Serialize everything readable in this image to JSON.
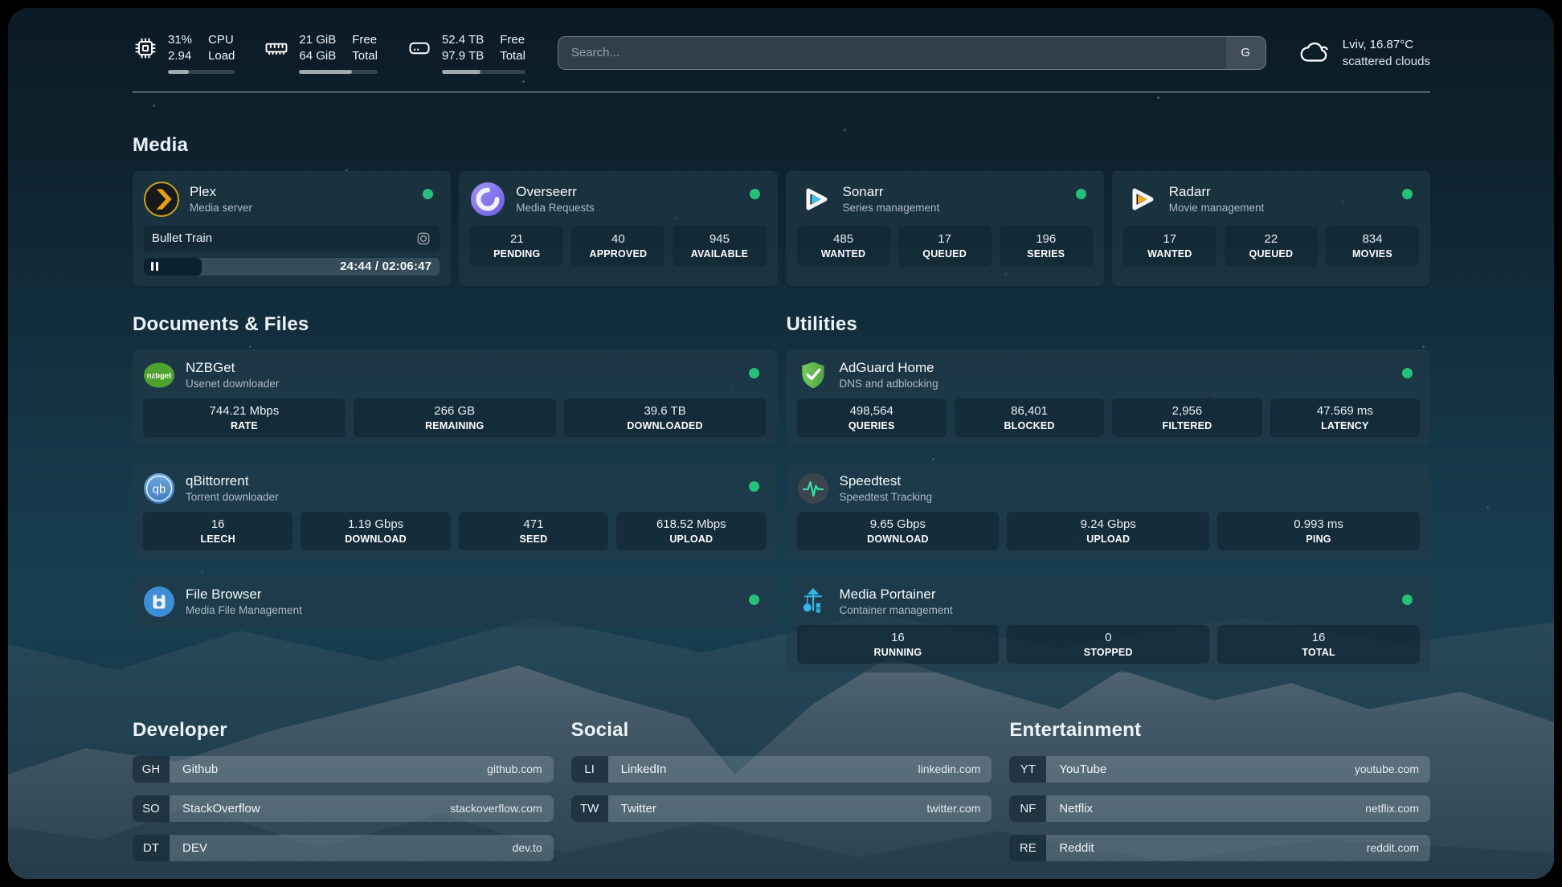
{
  "header": {
    "system": [
      {
        "icon": "cpu-icon",
        "col1": [
          "31%",
          "2.94"
        ],
        "col2": [
          "CPU",
          "Load"
        ],
        "percent": 31
      },
      {
        "icon": "memory-icon",
        "col1": [
          "21 GiB",
          "64 GiB"
        ],
        "col2": [
          "Free",
          "Total"
        ],
        "percent": 67
      },
      {
        "icon": "disk-icon",
        "col1": [
          "52.4 TB",
          "97.9 TB"
        ],
        "col2": [
          "Free",
          "Total"
        ],
        "percent": 46
      }
    ],
    "search": {
      "placeholder": "Search...",
      "provider_button": "G"
    },
    "weather": {
      "line1": "Lviv, 16.87°C",
      "line2": "scattered clouds"
    }
  },
  "sections": {
    "media": {
      "title": "Media",
      "cards": [
        {
          "name": "Plex",
          "desc": "Media server",
          "online": true,
          "now_playing": {
            "title": "Bullet Train",
            "time": "24:44 / 02:06:47",
            "progress_percent": 19.5
          }
        },
        {
          "name": "Overseerr",
          "desc": "Media Requests",
          "online": true,
          "stats": [
            {
              "value": "21",
              "label": "PENDING"
            },
            {
              "value": "40",
              "label": "APPROVED"
            },
            {
              "value": "945",
              "label": "AVAILABLE"
            }
          ]
        },
        {
          "name": "Sonarr",
          "desc": "Series management",
          "online": true,
          "stats": [
            {
              "value": "485",
              "label": "WANTED"
            },
            {
              "value": "17",
              "label": "QUEUED"
            },
            {
              "value": "196",
              "label": "SERIES"
            }
          ]
        },
        {
          "name": "Radarr",
          "desc": "Movie management",
          "online": true,
          "stats": [
            {
              "value": "17",
              "label": "WANTED"
            },
            {
              "value": "22",
              "label": "QUEUED"
            },
            {
              "value": "834",
              "label": "MOVIES"
            }
          ]
        }
      ]
    },
    "documents": {
      "title": "Documents & Files",
      "cards": [
        {
          "name": "NZBGet",
          "desc": "Usenet downloader",
          "online": true,
          "stats": [
            {
              "value": "744.21 Mbps",
              "label": "RATE"
            },
            {
              "value": "266 GB",
              "label": "REMAINING"
            },
            {
              "value": "39.6 TB",
              "label": "DOWNLOADED"
            }
          ]
        },
        {
          "name": "qBittorrent",
          "desc": "Torrent downloader",
          "online": true,
          "stats": [
            {
              "value": "16",
              "label": "LEECH"
            },
            {
              "value": "1.19 Gbps",
              "label": "DOWNLOAD"
            },
            {
              "value": "471",
              "label": "SEED"
            },
            {
              "value": "618.52 Mbps",
              "label": "UPLOAD"
            }
          ]
        },
        {
          "name": "File Browser",
          "desc": "Media File Management",
          "online": true
        }
      ]
    },
    "utilities": {
      "title": "Utilities",
      "cards": [
        {
          "name": "AdGuard Home",
          "desc": "DNS and adblocking",
          "online": true,
          "stats": [
            {
              "value": "498,564",
              "label": "QUERIES"
            },
            {
              "value": "86,401",
              "label": "BLOCKED"
            },
            {
              "value": "2,956",
              "label": "FILTERED"
            },
            {
              "value": "47.569 ms",
              "label": "LATENCY"
            }
          ]
        },
        {
          "name": "Speedtest",
          "desc": "Speedtest Tracking",
          "online": false,
          "stats": [
            {
              "value": "9.65 Gbps",
              "label": "DOWNLOAD"
            },
            {
              "value": "9.24 Gbps",
              "label": "UPLOAD"
            },
            {
              "value": "0.993 ms",
              "label": "PING"
            }
          ]
        },
        {
          "name": "Media Portainer",
          "desc": "Container management",
          "online": true,
          "stats": [
            {
              "value": "16",
              "label": "RUNNING"
            },
            {
              "value": "0",
              "label": "STOPPED"
            },
            {
              "value": "16",
              "label": "TOTAL"
            }
          ]
        }
      ]
    },
    "developer": {
      "title": "Developer",
      "links": [
        {
          "abbr": "GH",
          "name": "Github",
          "url": "github.com"
        },
        {
          "abbr": "SO",
          "name": "StackOverflow",
          "url": "stackoverflow.com"
        },
        {
          "abbr": "DT",
          "name": "DEV",
          "url": "dev.to"
        }
      ]
    },
    "social": {
      "title": "Social",
      "links": [
        {
          "abbr": "LI",
          "name": "LinkedIn",
          "url": "linkedin.com"
        },
        {
          "abbr": "TW",
          "name": "Twitter",
          "url": "twitter.com"
        }
      ]
    },
    "entertainment": {
      "title": "Entertainment",
      "links": [
        {
          "abbr": "YT",
          "name": "YouTube",
          "url": "youtube.com"
        },
        {
          "abbr": "NF",
          "name": "Netflix",
          "url": "netflix.com"
        },
        {
          "abbr": "RE",
          "name": "Reddit",
          "url": "reddit.com"
        }
      ]
    }
  },
  "colors": {
    "status_online": "#27c07a",
    "plex_accent": "#e5a00d",
    "sonarr_accent": "#3bc5f4",
    "radarr_accent": "#f8a51e",
    "adguard_accent": "#67c153",
    "portainer_accent": "#35b6ea",
    "speedtest_accent": "#2fe3a0"
  }
}
